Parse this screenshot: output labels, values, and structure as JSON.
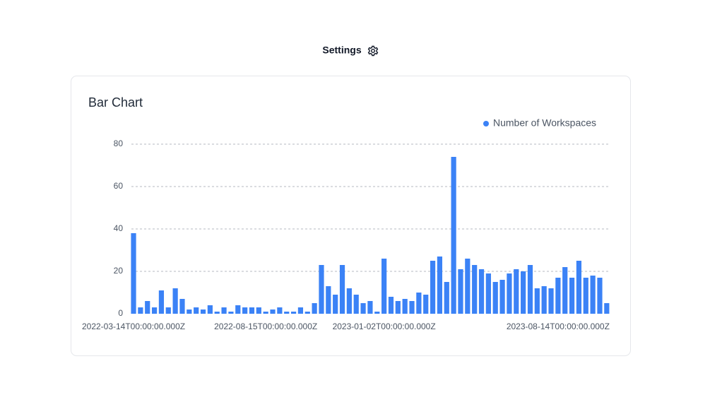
{
  "header": {
    "settings": "Settings"
  },
  "chart_data": {
    "type": "bar",
    "title": "Bar Chart",
    "series": [
      {
        "name": "Number of Workspaces",
        "color": "#3b82f6",
        "values": [
          38,
          3,
          6,
          3,
          11,
          3,
          12,
          7,
          2,
          3,
          2,
          4,
          1,
          3,
          1,
          4,
          3,
          3,
          3,
          1,
          2,
          3,
          1,
          1,
          3,
          1,
          5,
          23,
          13,
          9,
          23,
          12,
          9,
          5,
          6,
          1,
          26,
          8,
          6,
          7,
          6,
          10,
          9,
          25,
          27,
          15,
          74,
          21,
          26,
          23,
          21,
          19,
          15,
          16,
          19,
          21,
          20,
          23,
          12,
          13,
          12,
          17,
          22,
          17,
          25,
          17,
          18,
          17,
          5
        ]
      }
    ],
    "categories": [
      "2022-03-14T00:00:00.000Z",
      null,
      null,
      null,
      null,
      null,
      null,
      null,
      null,
      null,
      null,
      null,
      null,
      null,
      null,
      null,
      null,
      null,
      null,
      "2022-08-15T00:00:00.000Z",
      null,
      null,
      null,
      null,
      null,
      null,
      null,
      null,
      null,
      null,
      null,
      null,
      null,
      null,
      null,
      null,
      "2023-01-02T00:00:00.000Z",
      null,
      null,
      null,
      null,
      null,
      null,
      null,
      null,
      null,
      null,
      null,
      null,
      null,
      null,
      null,
      null,
      null,
      null,
      null,
      null,
      null,
      null,
      null,
      null,
      "2023-08-14T00:00:00.000Z",
      null,
      null,
      null,
      null,
      null,
      null,
      null
    ],
    "ylim": [
      0,
      80
    ],
    "yticks": [
      0,
      20,
      40,
      60,
      80
    ],
    "grid": true,
    "legend": "top-right"
  }
}
